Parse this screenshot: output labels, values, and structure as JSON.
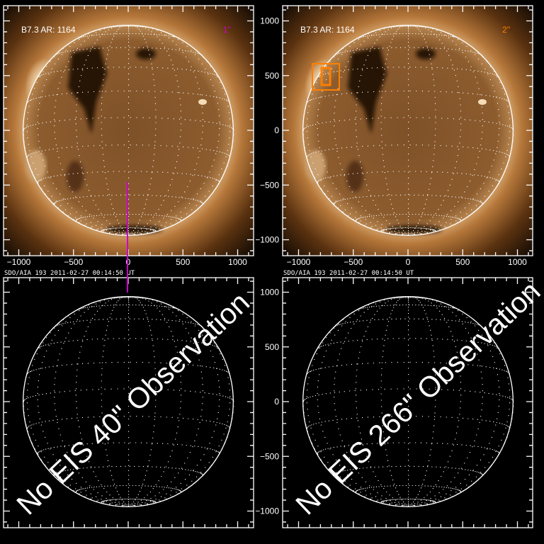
{
  "panels": [
    {
      "id": "top-left",
      "type": "image",
      "title": "B7.3 AR: 1164",
      "tag": "1''",
      "tag_color": "#cc00cc",
      "caption": "SDO/AIA 193   2011-02-27 00:14:50 UT"
    },
    {
      "id": "top-right",
      "type": "image",
      "title": "B7.3 AR: 1164",
      "tag": "2''",
      "tag_color": "#ff7f00",
      "caption": "SDO/AIA 193   2011-02-27 00:14:50 UT"
    },
    {
      "id": "bottom-left",
      "type": "empty",
      "message": "No EIS 40\" Observation"
    },
    {
      "id": "bottom-right",
      "type": "empty",
      "message": "No EIS 266\" Observation"
    }
  ],
  "axes": {
    "x_tick_labels": [
      "−1000",
      "−500",
      "0",
      "500",
      "1000"
    ],
    "y_tick_labels": [
      "1000",
      "500",
      "0",
      "−500",
      "−1000"
    ],
    "range": [
      -1150,
      1150
    ]
  },
  "colors": {
    "limb": "#ffffff",
    "highlight_box": "#ff7f00",
    "slit_line": "#cc00cc",
    "disk": "#8a5a2c"
  }
}
